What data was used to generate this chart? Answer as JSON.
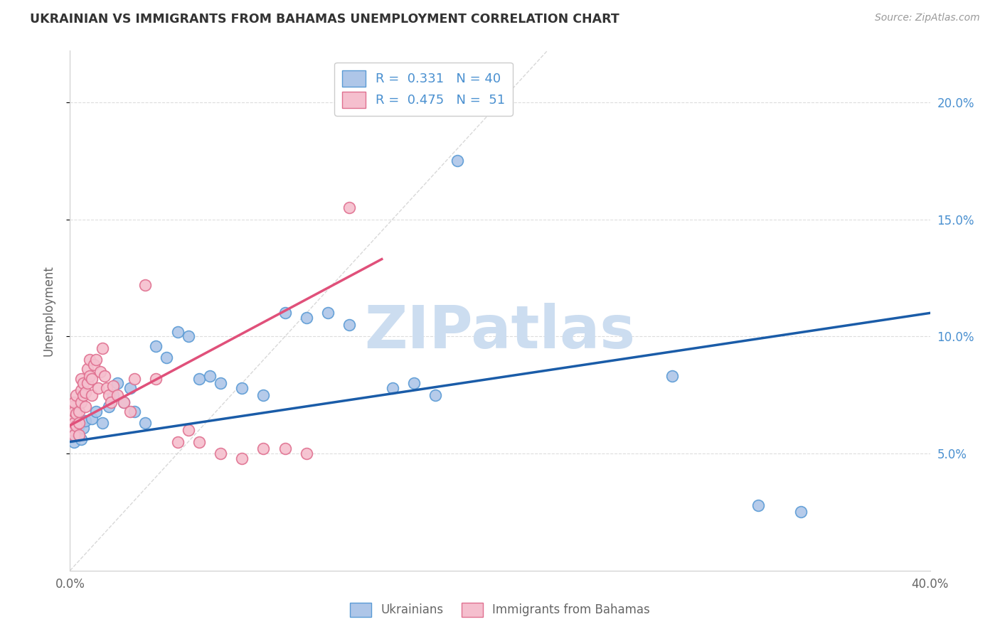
{
  "title": "UKRAINIAN VS IMMIGRANTS FROM BAHAMAS UNEMPLOYMENT CORRELATION CHART",
  "source": "Source: ZipAtlas.com",
  "watermark": "ZIPatlas",
  "ylabel": "Unemployment",
  "xlim": [
    0,
    0.4
  ],
  "ylim": [
    0,
    0.222
  ],
  "yticks": [
    0.05,
    0.1,
    0.15,
    0.2
  ],
  "ytick_labels": [
    "5.0%",
    "10.0%",
    "15.0%",
    "20.0%"
  ],
  "series_blue": {
    "name": "Ukrainians",
    "color": "#aec6e8",
    "edge_color": "#5b9bd5",
    "R": 0.331,
    "N": 40,
    "x": [
      0.001,
      0.001,
      0.002,
      0.002,
      0.003,
      0.003,
      0.004,
      0.005,
      0.006,
      0.007,
      0.01,
      0.012,
      0.015,
      0.018,
      0.02,
      0.022,
      0.025,
      0.028,
      0.03,
      0.035,
      0.04,
      0.045,
      0.05,
      0.055,
      0.06,
      0.065,
      0.07,
      0.08,
      0.09,
      0.1,
      0.11,
      0.12,
      0.13,
      0.15,
      0.16,
      0.17,
      0.18,
      0.28,
      0.32,
      0.34
    ],
    "y": [
      0.06,
      0.057,
      0.055,
      0.058,
      0.063,
      0.059,
      0.062,
      0.056,
      0.061,
      0.064,
      0.065,
      0.068,
      0.063,
      0.07,
      0.075,
      0.08,
      0.072,
      0.078,
      0.068,
      0.063,
      0.096,
      0.091,
      0.102,
      0.1,
      0.082,
      0.083,
      0.08,
      0.078,
      0.075,
      0.11,
      0.108,
      0.11,
      0.105,
      0.078,
      0.08,
      0.075,
      0.175,
      0.083,
      0.028,
      0.025
    ],
    "trend_color": "#1a5ca8",
    "trend_x0": 0.0,
    "trend_y0": 0.055,
    "trend_x1": 0.4,
    "trend_y1": 0.11
  },
  "series_pink": {
    "name": "Immigrants from Bahamas",
    "color": "#f5bfce",
    "edge_color": "#e07090",
    "R": 0.475,
    "N": 51,
    "x": [
      0.001,
      0.001,
      0.001,
      0.002,
      0.002,
      0.002,
      0.002,
      0.003,
      0.003,
      0.003,
      0.004,
      0.004,
      0.004,
      0.005,
      0.005,
      0.005,
      0.006,
      0.006,
      0.007,
      0.007,
      0.008,
      0.008,
      0.009,
      0.009,
      0.01,
      0.01,
      0.011,
      0.012,
      0.013,
      0.014,
      0.015,
      0.016,
      0.017,
      0.018,
      0.019,
      0.02,
      0.022,
      0.025,
      0.028,
      0.03,
      0.035,
      0.04,
      0.05,
      0.055,
      0.06,
      0.07,
      0.08,
      0.09,
      0.1,
      0.11,
      0.13
    ],
    "y": [
      0.06,
      0.065,
      0.07,
      0.058,
      0.063,
      0.068,
      0.072,
      0.062,
      0.067,
      0.075,
      0.058,
      0.063,
      0.068,
      0.072,
      0.077,
      0.082,
      0.075,
      0.08,
      0.07,
      0.076,
      0.08,
      0.086,
      0.083,
      0.09,
      0.075,
      0.082,
      0.088,
      0.09,
      0.078,
      0.085,
      0.095,
      0.083,
      0.078,
      0.075,
      0.072,
      0.079,
      0.075,
      0.072,
      0.068,
      0.082,
      0.122,
      0.082,
      0.055,
      0.06,
      0.055,
      0.05,
      0.048,
      0.052,
      0.052,
      0.05,
      0.155
    ],
    "trend_color": "#e0507a",
    "trend_x0": 0.0,
    "trend_y0": 0.062,
    "trend_x1": 0.145,
    "trend_y1": 0.133
  },
  "diag_line_color": "#c8c8c8",
  "grid_color": "#dddddd",
  "background_color": "#ffffff",
  "title_color": "#333333",
  "source_color": "#999999",
  "watermark_color": "#ccddf0",
  "right_axis_color": "#4a90d0",
  "legend_text_color": "#4a90d0",
  "axis_label_color": "#666666"
}
